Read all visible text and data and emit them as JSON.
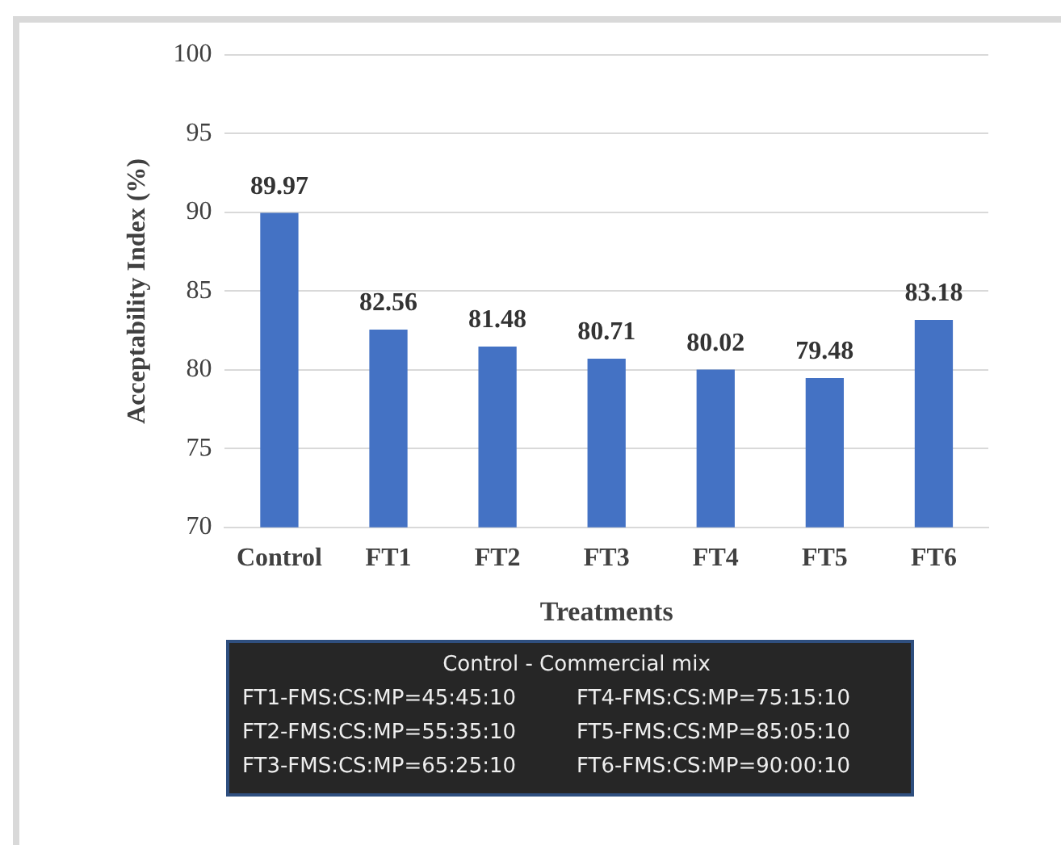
{
  "chart_data": {
    "type": "bar",
    "xlabel": "Treatments",
    "ylabel": "Acceptability Index (%)",
    "categories": [
      "Control",
      "FT1",
      "FT2",
      "FT3",
      "FT4",
      "FT5",
      "FT6"
    ],
    "values": [
      89.97,
      82.56,
      81.48,
      80.71,
      80.02,
      79.48,
      83.18
    ],
    "color": "#4472c4",
    "ylim": [
      70,
      100
    ],
    "yticks": [
      70,
      75,
      80,
      85,
      90,
      95,
      100
    ],
    "grid": "y",
    "data_labels": true,
    "annotations": [
      "Control - Commercial mix",
      "FT1-FMS:CS:MP=45:45:10",
      "FT2-FMS:CS:MP=55:35:10",
      "FT3-FMS:CS:MP=65:25:10",
      "FT4-FMS:CS:MP=75:15:10",
      "FT5-FMS:CS:MP=85:05:10",
      "FT6-FMS:CS:MP=90:00:10"
    ]
  }
}
